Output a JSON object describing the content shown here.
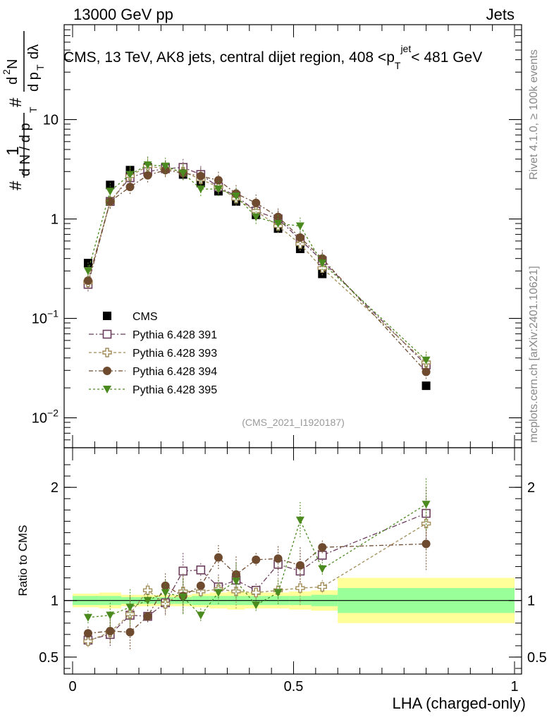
{
  "header": {
    "left": "13000 GeV pp",
    "right": "Jets"
  },
  "side": {
    "version": "Rivet 4.1.0, ≥ 100k events",
    "source": "mcplots.cern.ch [arXiv:2401.10621]"
  },
  "colors": {
    "cms": "#000000",
    "p391": "#6b3d5c",
    "p393": "#a08c56",
    "p394": "#6e4a2e",
    "p395": "#4a8a1e",
    "band_inner": "#99ff99",
    "band_outer": "#ffff99"
  },
  "chart_data": [
    {
      "type": "scatter",
      "title": "CMS, 13 TeV, AK8 jets, central dijet region, 408 <p_T^{jet}< 481 GeV",
      "analysis_id": "(CMS_2021_I1920187)",
      "ylabel_num": "1",
      "ylabel_den": "dN / dp_T",
      "ylabel_num2": "d²N",
      "ylabel_den2": "dp_T dλ",
      "yscale": "log",
      "ylim": [
        0.005,
        90
      ],
      "yticks": [
        {
          "value": 0.01,
          "label": "10",
          "sup": "−2"
        },
        {
          "value": 0.1,
          "label": "10",
          "sup": "−1"
        },
        {
          "value": 1,
          "label": "1",
          "sup": ""
        },
        {
          "value": 10,
          "label": "10",
          "sup": ""
        }
      ],
      "x": [
        0.035,
        0.085,
        0.13,
        0.17,
        0.21,
        0.25,
        0.29,
        0.33,
        0.37,
        0.415,
        0.465,
        0.515,
        0.565,
        0.8
      ],
      "series": [
        {
          "name": "CMS",
          "marker": "square-filled",
          "values": [
            0.36,
            2.2,
            3.1,
            3.3,
            3.3,
            2.8,
            2.3,
            1.9,
            1.5,
            1.1,
            0.8,
            0.5,
            0.28,
            0.021
          ]
        },
        {
          "name": "Pythia 6.428 391",
          "marker": "square-open",
          "values": [
            0.22,
            1.5,
            2.6,
            3.0,
            3.2,
            3.3,
            2.8,
            2.1,
            1.7,
            1.2,
            1.0,
            0.62,
            0.38,
            0.034
          ]
        },
        {
          "name": "Pythia 6.428 393",
          "marker": "cross-open",
          "values": [
            0.23,
            1.5,
            2.7,
            3.4,
            3.2,
            3.0,
            2.5,
            2.1,
            1.6,
            1.2,
            0.85,
            0.56,
            0.32,
            0.036
          ]
        },
        {
          "name": "Pythia 6.428 394",
          "marker": "circle-filled",
          "values": [
            0.24,
            1.5,
            2.1,
            2.75,
            3.1,
            2.9,
            2.7,
            2.45,
            1.8,
            1.45,
            1.05,
            0.65,
            0.4,
            0.029
          ]
        },
        {
          "name": "Pythia 6.428 395",
          "marker": "triangle-down",
          "values": [
            0.3,
            1.9,
            2.8,
            3.5,
            3.4,
            2.9,
            2.0,
            2.0,
            1.7,
            1.05,
            0.9,
            0.85,
            0.36,
            0.038
          ]
        }
      ]
    },
    {
      "type": "scatter",
      "ylabel": "Ratio to CMS",
      "xlabel": "LHA (charged-only)",
      "ylim": [
        0.35,
        2.35
      ],
      "xlim": [
        -0.02,
        1.02
      ],
      "xticks": [
        0,
        0.5,
        1
      ],
      "yticks": [
        0.5,
        1,
        2
      ],
      "x": [
        0.035,
        0.085,
        0.13,
        0.17,
        0.21,
        0.25,
        0.29,
        0.33,
        0.37,
        0.415,
        0.465,
        0.515,
        0.565,
        0.8
      ],
      "band_edges": [
        0,
        0.06,
        0.11,
        0.15,
        0.19,
        0.23,
        0.27,
        0.31,
        0.35,
        0.39,
        0.44,
        0.49,
        0.54,
        0.6,
        1.0
      ],
      "band_inner": [
        0.04,
        0.04,
        0.03,
        0.03,
        0.03,
        0.03,
        0.04,
        0.04,
        0.04,
        0.04,
        0.04,
        0.04,
        0.05,
        0.11
      ],
      "band_outer": [
        0.06,
        0.07,
        0.05,
        0.05,
        0.05,
        0.05,
        0.06,
        0.07,
        0.08,
        0.07,
        0.07,
        0.08,
        0.09,
        0.2
      ],
      "series": [
        {
          "name": "Pythia 6.428 391",
          "values": [
            0.65,
            0.7,
            0.87,
            0.86,
            0.98,
            1.26,
            1.27,
            1.12,
            1.18,
            1.09,
            1.32,
            1.26,
            1.4,
            1.77
          ]
        },
        {
          "name": "Pythia 6.428 393",
          "values": [
            0.64,
            0.72,
            0.88,
            1.09,
            0.97,
            1.08,
            1.08,
            1.1,
            1.08,
            1.07,
            1.09,
            1.11,
            1.12,
            1.68
          ]
        },
        {
          "name": "Pythia 6.428 394",
          "values": [
            0.71,
            0.73,
            0.72,
            0.86,
            1.13,
            1.04,
            1.13,
            1.38,
            1.23,
            1.36,
            1.37,
            1.31,
            1.47,
            1.5
          ]
        },
        {
          "name": "Pythia 6.428 395",
          "values": [
            0.85,
            0.87,
            0.94,
            1.0,
            1.07,
            1.03,
            0.87,
            1.07,
            1.17,
            0.96,
            1.07,
            1.71,
            1.28,
            1.85
          ]
        }
      ]
    }
  ]
}
